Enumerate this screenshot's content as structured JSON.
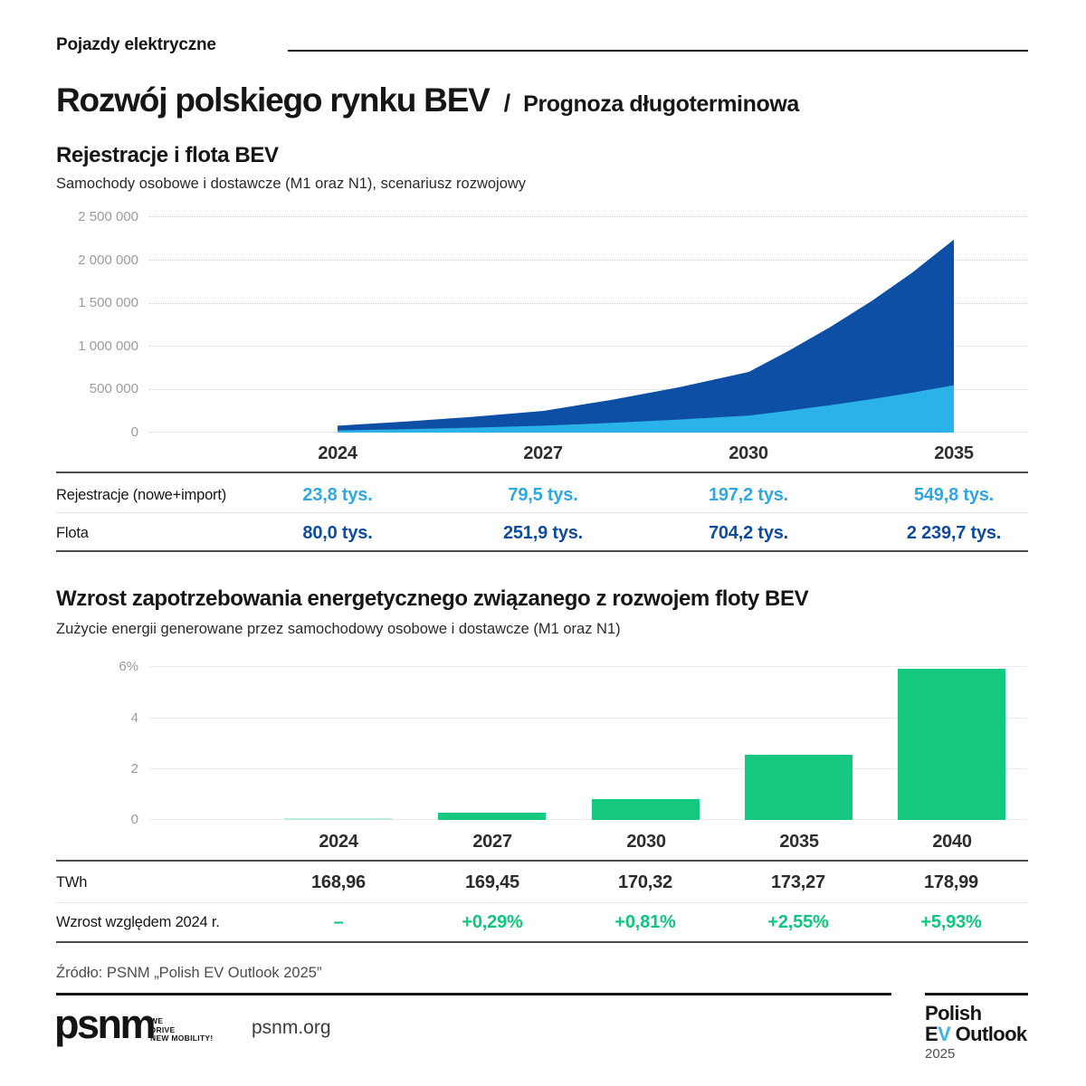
{
  "header": {
    "eyebrow": "Pojazdy elektryczne",
    "title_main": "Rozwój polskiego rynku BEV",
    "title_separator": "/",
    "title_sub": "Prognoza długoterminowa"
  },
  "colors": {
    "fleet_area": "#0d4fa4",
    "registrations_area": "#2bb2e8",
    "fleet_text": "#0d4c9e",
    "registrations_text": "#2fa8e1",
    "bar_green": "#15c880",
    "bar_green_zero": "#bfecd9",
    "green_text": "#0fc67d",
    "accent_blue_logo": "#3cb4e8"
  },
  "chart_data": [
    {
      "type": "area",
      "title": "Rejestracje i flota BEV",
      "subtitle": "Samochody osobowe i dostawcze (M1 oraz N1), scenariusz rozwojowy",
      "x_years": [
        2024,
        2027,
        2030,
        2035
      ],
      "x_tick_labels": [
        "2024",
        "2027",
        "2030",
        "2035"
      ],
      "y_ticks": [
        "2 500 000",
        "2 000 000",
        "1 500 000",
        "1 000 000",
        "500 000",
        "0"
      ],
      "ylim": [
        0,
        2500000
      ],
      "grid": "horizontal dotted",
      "legend_position": "table below chart",
      "series": [
        {
          "name": "Flota",
          "unit": "tys.",
          "values_thousands": [
            80.0,
            251.9,
            704.2,
            2239.7
          ],
          "color": "#0d4fa4"
        },
        {
          "name": "Rejestracje (nowe+import)",
          "unit": "tys.",
          "values_thousands": [
            23.8,
            79.5,
            197.2,
            549.8
          ],
          "color": "#2bb2e8"
        }
      ],
      "table": {
        "columns": [
          "2024",
          "2027",
          "2030",
          "2035"
        ],
        "rows": [
          {
            "label": "Rejestracje (nowe+import)",
            "cells": [
              "23,8 tys.",
              "79,5 tys.",
              "197,2 tys.",
              "549,8 tys."
            ]
          },
          {
            "label": "Flota",
            "cells": [
              "80,0 tys.",
              "251,9 tys.",
              "704,2 tys.",
              "2 239,7 tys."
            ]
          }
        ]
      }
    },
    {
      "type": "bar",
      "title": "Wzrost zapotrzebowania energetycznego związanego z rozwojem floty BEV",
      "subtitle": "Zużycie energii generowane przez samochodowy osobowe i dostawcze (M1 oraz N1)",
      "categories": [
        "2024",
        "2027",
        "2030",
        "2035",
        "2040"
      ],
      "values_pct": [
        0,
        0.29,
        0.81,
        2.55,
        5.93
      ],
      "twh_values": [
        168.96,
        169.45,
        170.32,
        173.27,
        178.99
      ],
      "y_ticks": [
        "6%",
        "4",
        "2",
        "0"
      ],
      "ylim": [
        0,
        6
      ],
      "grid": "horizontal solid",
      "bar_color": "#15c880",
      "table": {
        "columns": [
          "2024",
          "2027",
          "2030",
          "2035",
          "2040"
        ],
        "rows": [
          {
            "label": "TWh",
            "cells": [
              "168,96",
              "169,45",
              "170,32",
              "173,27",
              "178,99"
            ]
          },
          {
            "label": "Wzrost względem 2024 r.",
            "cells": [
              "–",
              "+0,29%",
              "+0,81%",
              "+2,55%",
              "+5,93%"
            ]
          }
        ]
      }
    }
  ],
  "footer": {
    "source": "Źródło: PSNM „Polish EV Outlook 2025”",
    "website": "psnm.org",
    "psnm_logo": {
      "wordmark": "psnm",
      "tagline_line1": "WE",
      "tagline_line2": "DRIVE",
      "tagline_line3": "NEW MOBILITY!"
    },
    "outlook_logo": {
      "line1": "Polish",
      "line2_e": "E",
      "line2_v": "V",
      "line2_rest": " Outlook",
      "year": "2025"
    }
  }
}
